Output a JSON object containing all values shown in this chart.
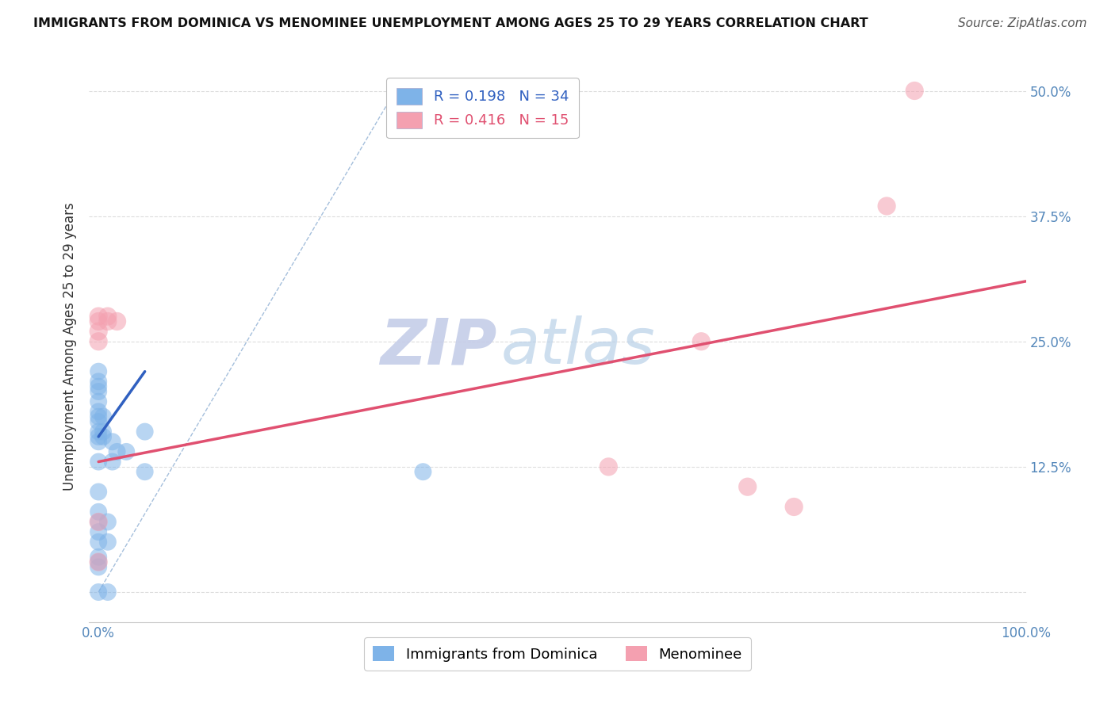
{
  "title": "IMMIGRANTS FROM DOMINICA VS MENOMINEE UNEMPLOYMENT AMONG AGES 25 TO 29 YEARS CORRELATION CHART",
  "source": "Source: ZipAtlas.com",
  "ylabel": "Unemployment Among Ages 25 to 29 years",
  "xlabel_blue": "Immigrants from Dominica",
  "xlabel_pink": "Menominee",
  "xlim": [
    -0.01,
    1.0
  ],
  "ylim": [
    -0.03,
    0.52
  ],
  "xticks": [
    0.0,
    0.25,
    0.5,
    0.75,
    1.0
  ],
  "xtick_labels": [
    "0.0%",
    "",
    "",
    "",
    "100.0%"
  ],
  "ytick_labels": [
    "50.0%",
    "37.5%",
    "25.0%",
    "12.5%",
    ""
  ],
  "yticks": [
    0.5,
    0.375,
    0.25,
    0.125,
    0.0
  ],
  "R_blue": 0.198,
  "N_blue": 34,
  "R_pink": 0.416,
  "N_pink": 15,
  "blue_color": "#7EB3E8",
  "pink_color": "#F4A0B0",
  "blue_line_color": "#3060C0",
  "pink_line_color": "#E05070",
  "ref_line_color": "#9BB8D8",
  "grid_color": "#DDDDDD",
  "blue_scatter": [
    [
      0.0,
      0.0
    ],
    [
      0.0,
      0.025
    ],
    [
      0.0,
      0.03
    ],
    [
      0.0,
      0.035
    ],
    [
      0.0,
      0.05
    ],
    [
      0.0,
      0.06
    ],
    [
      0.0,
      0.07
    ],
    [
      0.0,
      0.08
    ],
    [
      0.0,
      0.1
    ],
    [
      0.0,
      0.13
    ],
    [
      0.0,
      0.15
    ],
    [
      0.0,
      0.155
    ],
    [
      0.0,
      0.16
    ],
    [
      0.0,
      0.17
    ],
    [
      0.0,
      0.175
    ],
    [
      0.0,
      0.18
    ],
    [
      0.0,
      0.19
    ],
    [
      0.0,
      0.2
    ],
    [
      0.0,
      0.205
    ],
    [
      0.0,
      0.21
    ],
    [
      0.0,
      0.22
    ],
    [
      0.005,
      0.155
    ],
    [
      0.005,
      0.16
    ],
    [
      0.005,
      0.175
    ],
    [
      0.01,
      0.0
    ],
    [
      0.01,
      0.05
    ],
    [
      0.01,
      0.07
    ],
    [
      0.015,
      0.13
    ],
    [
      0.015,
      0.15
    ],
    [
      0.02,
      0.14
    ],
    [
      0.03,
      0.14
    ],
    [
      0.05,
      0.12
    ],
    [
      0.05,
      0.16
    ],
    [
      0.35,
      0.12
    ]
  ],
  "pink_scatter": [
    [
      0.0,
      0.03
    ],
    [
      0.0,
      0.07
    ],
    [
      0.0,
      0.27
    ],
    [
      0.0,
      0.275
    ],
    [
      0.01,
      0.27
    ],
    [
      0.01,
      0.275
    ],
    [
      0.02,
      0.27
    ],
    [
      0.55,
      0.125
    ],
    [
      0.65,
      0.25
    ],
    [
      0.7,
      0.105
    ],
    [
      0.75,
      0.085
    ],
    [
      0.85,
      0.385
    ],
    [
      0.88,
      0.5
    ],
    [
      0.0,
      0.25
    ],
    [
      0.0,
      0.26
    ]
  ],
  "watermark_zip_color": "#C5CDE8",
  "watermark_atlas_color": "#B8D0E8",
  "blue_trend_x0": 0.0,
  "blue_trend_x1": 0.05,
  "blue_trend_y0": 0.155,
  "blue_trend_y1": 0.22,
  "pink_trend_x0": 0.0,
  "pink_trend_x1": 1.0,
  "pink_trend_y0": 0.13,
  "pink_trend_y1": 0.31
}
